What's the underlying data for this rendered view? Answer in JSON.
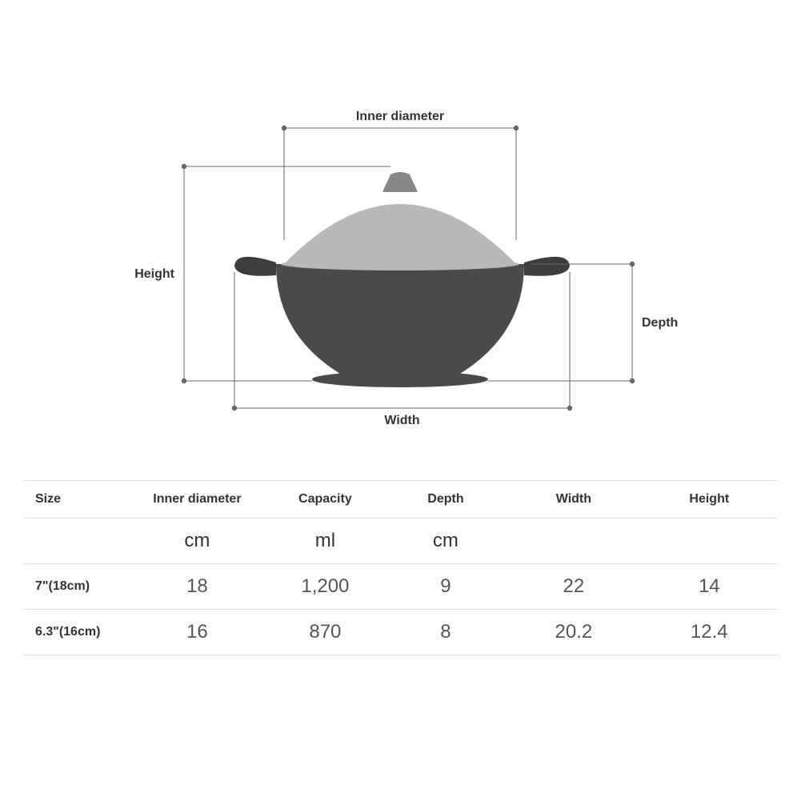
{
  "diagram": {
    "labels": {
      "inner_diameter": "Inner diameter",
      "height": "Height",
      "width": "Width",
      "depth": "Depth"
    },
    "colors": {
      "line": "#666666",
      "lid": "#b8b8b8",
      "knob": "#888888",
      "pot": "#4a4a4a",
      "handle": "#3d3d3d"
    }
  },
  "table": {
    "columns": [
      "Size",
      "Inner diameter",
      "Capacity",
      "Depth",
      "Width",
      "Height"
    ],
    "units": [
      "",
      "cm",
      "ml",
      "cm",
      "",
      ""
    ],
    "col_widths_pct": [
      14,
      18,
      16,
      16,
      18,
      18
    ],
    "rows": [
      {
        "size": "7\"(18cm)",
        "inner_diameter": "18",
        "capacity": "1,200",
        "depth": "9",
        "width": "22",
        "height": "14"
      },
      {
        "size": "6.3\"(16cm)",
        "inner_diameter": "16",
        "capacity": "870",
        "depth": "8",
        "width": "20.2",
        "height": "12.4"
      }
    ],
    "border_color": "#dddddd",
    "header_fontsize": 16,
    "cell_fontsize": 24,
    "text_color": "#333333",
    "value_color": "#555555"
  },
  "background_color": "#ffffff"
}
